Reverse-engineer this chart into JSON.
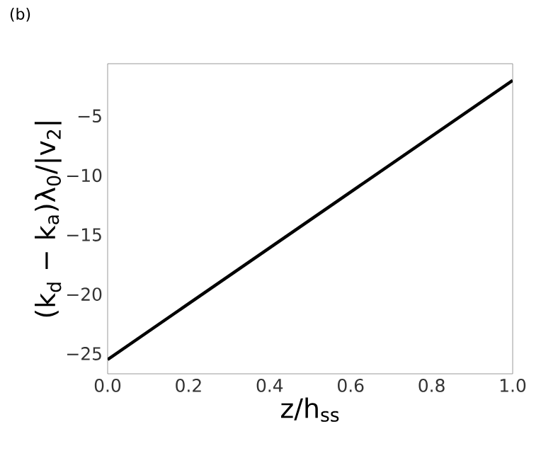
{
  "chart_data": {
    "type": "line",
    "annotations": [
      "(b)"
    ],
    "xlabel": "z/h$_{ss}$",
    "ylabel": "(k$_{d}$ − k$_{a}$)λ$_{0}$/|v$_{2}$|",
    "x": [
      0,
      1
    ],
    "series": [
      {
        "color": "#000000",
        "values": [
          -25.5,
          -2
        ]
      }
    ],
    "xlim": [
      0,
      1
    ],
    "ylim": [
      -26.7,
      -0.6
    ],
    "xticks": [
      {
        "value": 0,
        "label": "0.0"
      },
      0.2,
      0.4,
      0.6,
      0.8,
      {
        "value": 1,
        "label": "1.0"
      }
    ],
    "yticks": [
      {
        "value": -25,
        "label": "−25"
      },
      {
        "value": -20,
        "label": "−20"
      },
      {
        "value": -15,
        "label": "−15"
      },
      {
        "value": -10,
        "label": "−10"
      },
      {
        "value": -5,
        "label": "−5"
      }
    ]
  }
}
